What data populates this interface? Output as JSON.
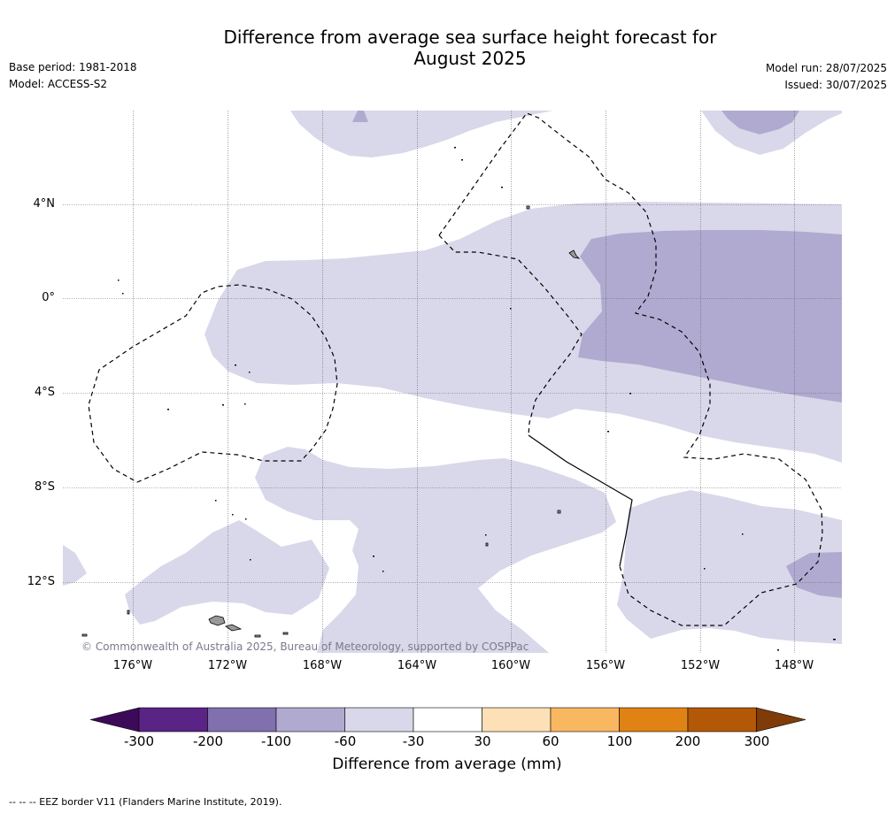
{
  "title_line1": "Difference from average sea surface height forecast for",
  "title_line2": "August 2025",
  "meta_left": {
    "base_period": "Base period: 1981-2018",
    "model": "Model: ACCESS-S2"
  },
  "meta_right": {
    "model_run": "Model run: 28/07/2025",
    "issued": "Issued: 30/07/2025"
  },
  "map": {
    "lat_labels": [
      "4°N",
      "0°",
      "4°S",
      "8°S",
      "12°S"
    ],
    "lon_labels": [
      "176°W",
      "172°W",
      "168°W",
      "164°W",
      "160°W",
      "156°W",
      "152°W",
      "148°W"
    ],
    "credit": "© Commonwealth of Australia 2025, Bureau of Meteorology, supported by COSPPac",
    "colors": {
      "light_purple": "#d8d8ea",
      "mid_purple": "#b0aad0",
      "land": "#999999"
    }
  },
  "colorbar": {
    "title": "Difference from average (mm)",
    "tick_labels": [
      "-300",
      "-200",
      "-100",
      "-60",
      "-30",
      "30",
      "60",
      "100",
      "200",
      "300"
    ],
    "colors": [
      "#3d0a5a",
      "#5a2486",
      "#8070ae",
      "#b0aad0",
      "#d8d8ea",
      "#ffffff",
      "#fee0b6",
      "#f9b760",
      "#e08214",
      "#b35806",
      "#7f3b08"
    ]
  },
  "footnote": "-- -- -- EEZ border V11 (Flanders Marine Institute, 2019)."
}
